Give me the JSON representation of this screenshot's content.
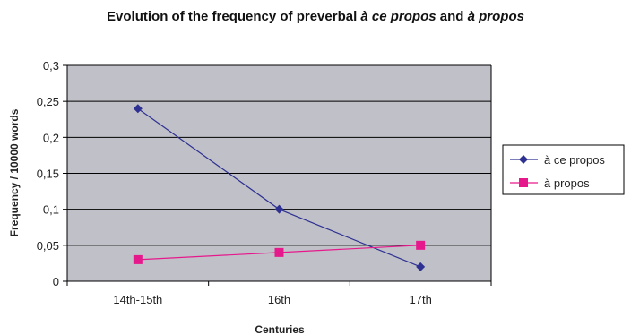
{
  "chart_data": {
    "type": "line",
    "title_parts": {
      "lead": "Evolution of the frequency of preverbal ",
      "italic1": "à ce propos",
      "mid": " and ",
      "italic2": "à propos"
    },
    "xlabel": "Centuries",
    "ylabel": "Frequency / 10000 words",
    "categories": [
      "14th-15th",
      "16th",
      "17th"
    ],
    "ylim": [
      0,
      0.3
    ],
    "yticks": [
      "0",
      "0,05",
      "0,1",
      "0,15",
      "0,2",
      "0,25",
      "0,3"
    ],
    "grid": true,
    "legend_position": "right",
    "series": [
      {
        "name": "à ce propos",
        "values": [
          0.24,
          0.1,
          0.02
        ],
        "color": "#2e3192",
        "marker": "diamond"
      },
      {
        "name": "à propos",
        "values": [
          0.03,
          0.04,
          0.05
        ],
        "color": "#e6198c",
        "marker": "square"
      }
    ],
    "plot_background": "#c0c0c8"
  }
}
